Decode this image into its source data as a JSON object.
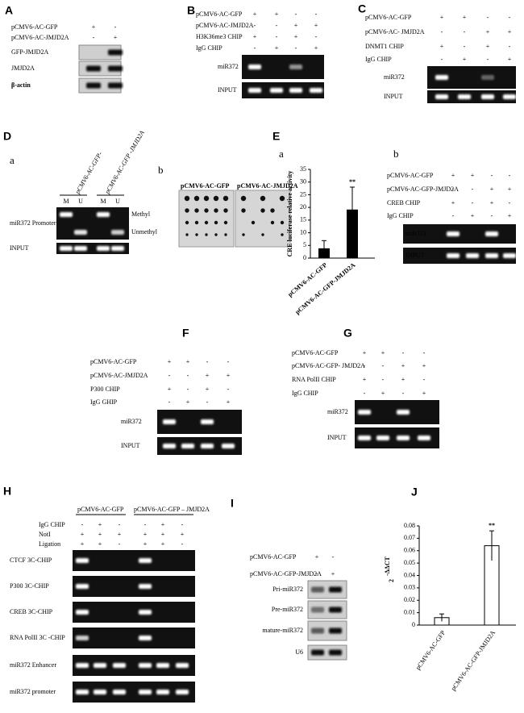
{
  "panels": {
    "A": {
      "label": "A",
      "rows": [
        "pCMV6-AC-GFP",
        "pCMV6-AC-JMJD2A"
      ],
      "signs": [
        [
          "+",
          "-"
        ],
        [
          "-",
          "+"
        ]
      ],
      "blots": [
        "GFP-JMJD2A",
        "JMJD2A",
        "β-actin"
      ]
    },
    "B": {
      "label": "B",
      "rows": [
        "pCMV6-AC-GFP",
        "pCMV6-AC-JMJD2A",
        "H3K36me3 CHIP",
        "IgG  CHIP"
      ],
      "signs": [
        [
          "+",
          "+",
          "-",
          "-"
        ],
        [
          "-",
          "-",
          "+",
          "+"
        ],
        [
          "+",
          "-",
          "+",
          "-"
        ],
        [
          "-",
          "+",
          "-",
          "+"
        ]
      ],
      "gels": [
        "miR372",
        "INPUT"
      ]
    },
    "C": {
      "label": "C",
      "rows": [
        "pCMV6-AC-GFP",
        "pCMV6-AC- JMJD2A",
        "DNMT1 CHIP",
        "IgG  CHIP"
      ],
      "signs": [
        [
          "+",
          "+",
          "-",
          "-"
        ],
        [
          "-",
          "-",
          "+",
          "+"
        ],
        [
          "+",
          "-",
          "+",
          "-"
        ],
        [
          "-",
          "+",
          "-",
          "+"
        ]
      ],
      "gels": [
        "miR372",
        "INPUT"
      ]
    },
    "D": {
      "label": "D",
      "a": {
        "label": "a",
        "columns": [
          "pCMV6-AC-GFP-",
          "pCMV6-AC-GFP -JMJD2A"
        ],
        "lanes": [
          "M",
          "U",
          "M",
          "U"
        ],
        "gels": [
          "miR372 Promoter",
          "INPUT"
        ],
        "bands": [
          "Methyl",
          "Unmethyl"
        ]
      },
      "b": {
        "label": "b",
        "columns": [
          "pCMV6-AC-GFP",
          "pCMV6-AC-JMJD2A"
        ]
      }
    },
    "E": {
      "label": "E",
      "a": {
        "label": "a"
      },
      "b": {
        "label": "b",
        "rows": [
          "pCMV6-AC-GFP",
          "pCMV6-AC-GFP-JMJD2A",
          "CREB  CHIP",
          "IgG  CHIP"
        ],
        "signs": [
          [
            "+",
            "+",
            "-",
            "-"
          ],
          [
            "-",
            "-",
            "+",
            "+"
          ],
          [
            "+",
            "-",
            "+",
            "-"
          ],
          [
            "-",
            "+",
            "-",
            "+"
          ]
        ],
        "gels": [
          "miR372",
          "INPUT"
        ]
      }
    },
    "F": {
      "label": "F",
      "rows": [
        "pCMV6-AC-GFP",
        "pCMV6-AC-JMJD2A",
        "P300  CHIP",
        "IgG  GHIP"
      ],
      "signs": [
        [
          "+",
          "+",
          "-",
          "-"
        ],
        [
          "-",
          "-",
          "+",
          "+"
        ],
        [
          "+",
          "-",
          "+",
          "-"
        ],
        [
          "-",
          "+",
          "-",
          "+"
        ]
      ],
      "gels": [
        "miR372",
        "INPUT"
      ]
    },
    "G": {
      "label": "G",
      "rows": [
        "pCMV6-AC-GFP",
        "pCMV6-AC-GFP- JMJD2A",
        "RNA PolII CHIP",
        "IgG CHIP"
      ],
      "signs": [
        [
          "+",
          "+",
          "-",
          "-"
        ],
        [
          "-",
          "-",
          "+",
          "+"
        ],
        [
          "+",
          "-",
          "+",
          "-"
        ],
        [
          "-",
          "+",
          "-",
          "+"
        ]
      ],
      "gels": [
        "miR372",
        "INPUT"
      ]
    },
    "H": {
      "label": "H",
      "groups": [
        "pCMV6-AC-GFP",
        "pCMV6-AC-GFP – JMJD2A"
      ],
      "rows": [
        "IgG CHIP",
        "NotI",
        "Ligation"
      ],
      "signs": [
        [
          "-",
          "+",
          "-",
          "-",
          "+",
          "-"
        ],
        [
          "+",
          "+",
          "+",
          "+",
          "+",
          "+"
        ],
        [
          "+",
          "+",
          "-",
          "+",
          "+",
          "-"
        ]
      ],
      "gels": [
        "CTCF 3C-CHIP",
        "P300 3C-CHIP",
        "CREB 3C-CHIP",
        "RNA PolII  3C -CHIP",
        "miR372 Enhancer",
        "miR372 promoter"
      ]
    },
    "I": {
      "label": "I",
      "rows": [
        "pCMV6-AC-GFP",
        "pCMV6-AC-GFP-JMJD2A"
      ],
      "signs": [
        [
          "+",
          "-"
        ],
        [
          "-",
          "+"
        ]
      ],
      "blots": [
        "Pri-miR372",
        "Pre-miR372",
        "mature-miR372",
        "U6"
      ]
    },
    "J": {
      "label": "J"
    }
  },
  "chart_data": [
    {
      "type": "bar",
      "y_label": "CRE luciferase relative activity",
      "categories": [
        "pCMV6-AC-GFP",
        "pCMV6-AC-GFP-JMJD2A"
      ],
      "values": [
        3.7,
        19
      ],
      "errors": [
        3.2,
        9
      ],
      "color": "#000000",
      "ylim": [
        0,
        35
      ],
      "yticks": [
        0,
        5,
        10,
        15,
        20,
        25,
        30,
        35
      ],
      "annotation": "**"
    },
    {
      "type": "bar",
      "y_label": "2",
      "y_label_sup": "-ΔΔCT",
      "categories": [
        "pCMV6-AC-GFP",
        "pCMV6-AC-GFP-JMJD2A"
      ],
      "values": [
        0.006,
        0.064
      ],
      "errors": [
        0.003,
        0.012
      ],
      "color": "#ffffff",
      "ylim": [
        0,
        0.08
      ],
      "yticks": [
        0,
        0.01,
        0.02,
        0.03,
        0.04,
        0.05,
        0.06,
        0.07,
        0.08
      ],
      "annotation": "**"
    }
  ]
}
